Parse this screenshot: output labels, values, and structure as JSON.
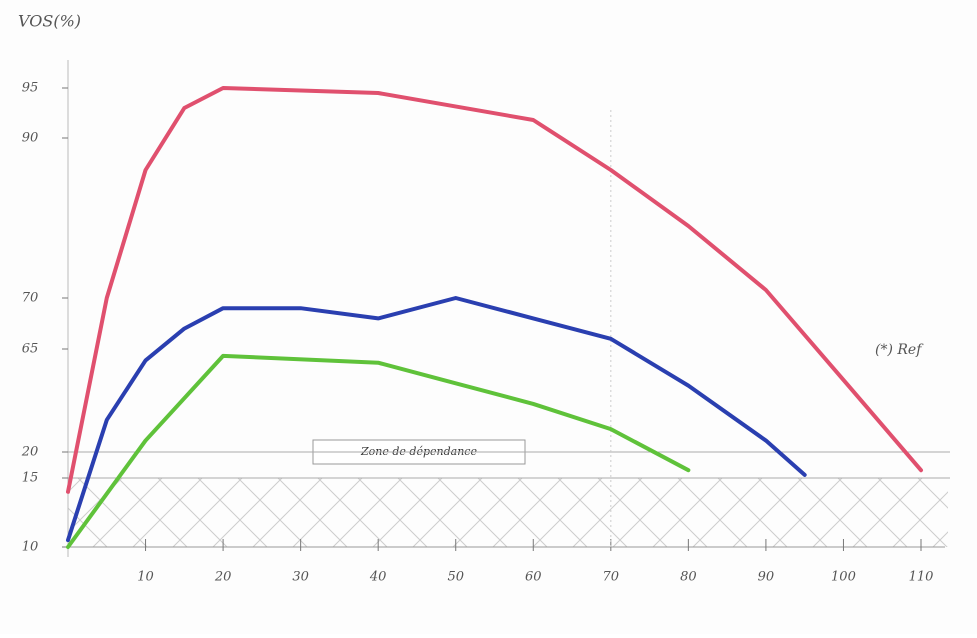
{
  "chart_data": {
    "type": "line",
    "y_label": "VOS(%)",
    "annotation": "Zone de dépendance",
    "note": "(*) Ref",
    "xlim": [
      0,
      110
    ],
    "xticks": [
      10,
      20,
      30,
      40,
      50,
      60,
      70,
      80,
      90,
      100,
      110
    ],
    "ylim": [
      10,
      95
    ],
    "yticks": [
      10,
      15,
      20,
      65,
      70,
      90,
      95
    ],
    "series": [
      {
        "color": "#e0506e",
        "x": [
          0,
          5,
          10,
          15,
          20,
          40,
          60,
          70,
          80,
          90,
          100,
          110
        ],
        "values": [
          14,
          70,
          86,
          93,
          95,
          94.5,
          91.8,
          86,
          79,
          71,
          51.5,
          16.5
        ]
      },
      {
        "color": "#2a3fb0",
        "x": [
          0,
          5,
          10,
          15,
          20,
          30,
          40,
          50,
          60,
          70,
          80,
          90,
          95
        ],
        "values": [
          10.5,
          34,
          60,
          67,
          69,
          69,
          68,
          70,
          68,
          66,
          49,
          25,
          15.6
        ]
      },
      {
        "color": "#5fc23a",
        "x": [
          0,
          10,
          20,
          40,
          60,
          70,
          80
        ],
        "values": [
          10,
          25,
          62,
          59,
          41,
          30,
          16.5
        ]
      }
    ]
  }
}
